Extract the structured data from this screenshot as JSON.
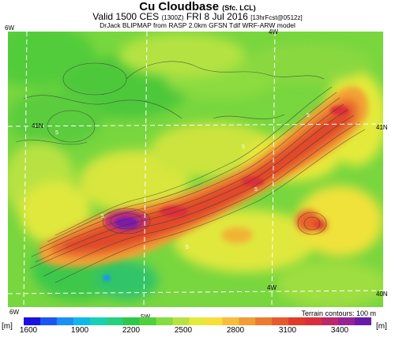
{
  "header": {
    "title": "Cu Cloudbase",
    "title_suffix": "(Sfc. LCL)",
    "valid_main": "Valid 1500 CES",
    "valid_utc": "(1300Z)",
    "valid_date": "FRI 8 Jul 2016",
    "forecast_tag": "[13hrFcst@0512z]",
    "model_line": "DrJack BLIPMAP from RASP 2.0km GFSN Tdif WRF-ARW model"
  },
  "map": {
    "lon_labels": [
      "6W",
      "4W",
      "5W",
      "4W",
      "6W"
    ],
    "lat_labels": [
      "41N",
      "41N",
      "40N"
    ],
    "contour_value_labels": [
      "5",
      "5",
      "5",
      "5",
      "5",
      "5"
    ],
    "terrain_note": "Terrain contours: 100 m"
  },
  "colorbar": {
    "unit_left": "[m]",
    "unit_right": "[m]",
    "ticks": [
      "1600",
      "1900",
      "2200",
      "2500",
      "2800",
      "3100",
      "3400"
    ],
    "range": [
      1600,
      3600
    ],
    "colors": [
      "#1a10e0",
      "#1c55f5",
      "#1a90f5",
      "#10b8e8",
      "#18d0b8",
      "#26d07e",
      "#2ec848",
      "#4ed23a",
      "#86dc40",
      "#b8e242",
      "#e4ea3a",
      "#f8de38",
      "#f8bc3a",
      "#f29c36",
      "#ec7a30",
      "#e65a2c",
      "#e03a2a",
      "#dc2e3a",
      "#bc286a",
      "#962296",
      "#6a1aaa"
    ]
  }
}
